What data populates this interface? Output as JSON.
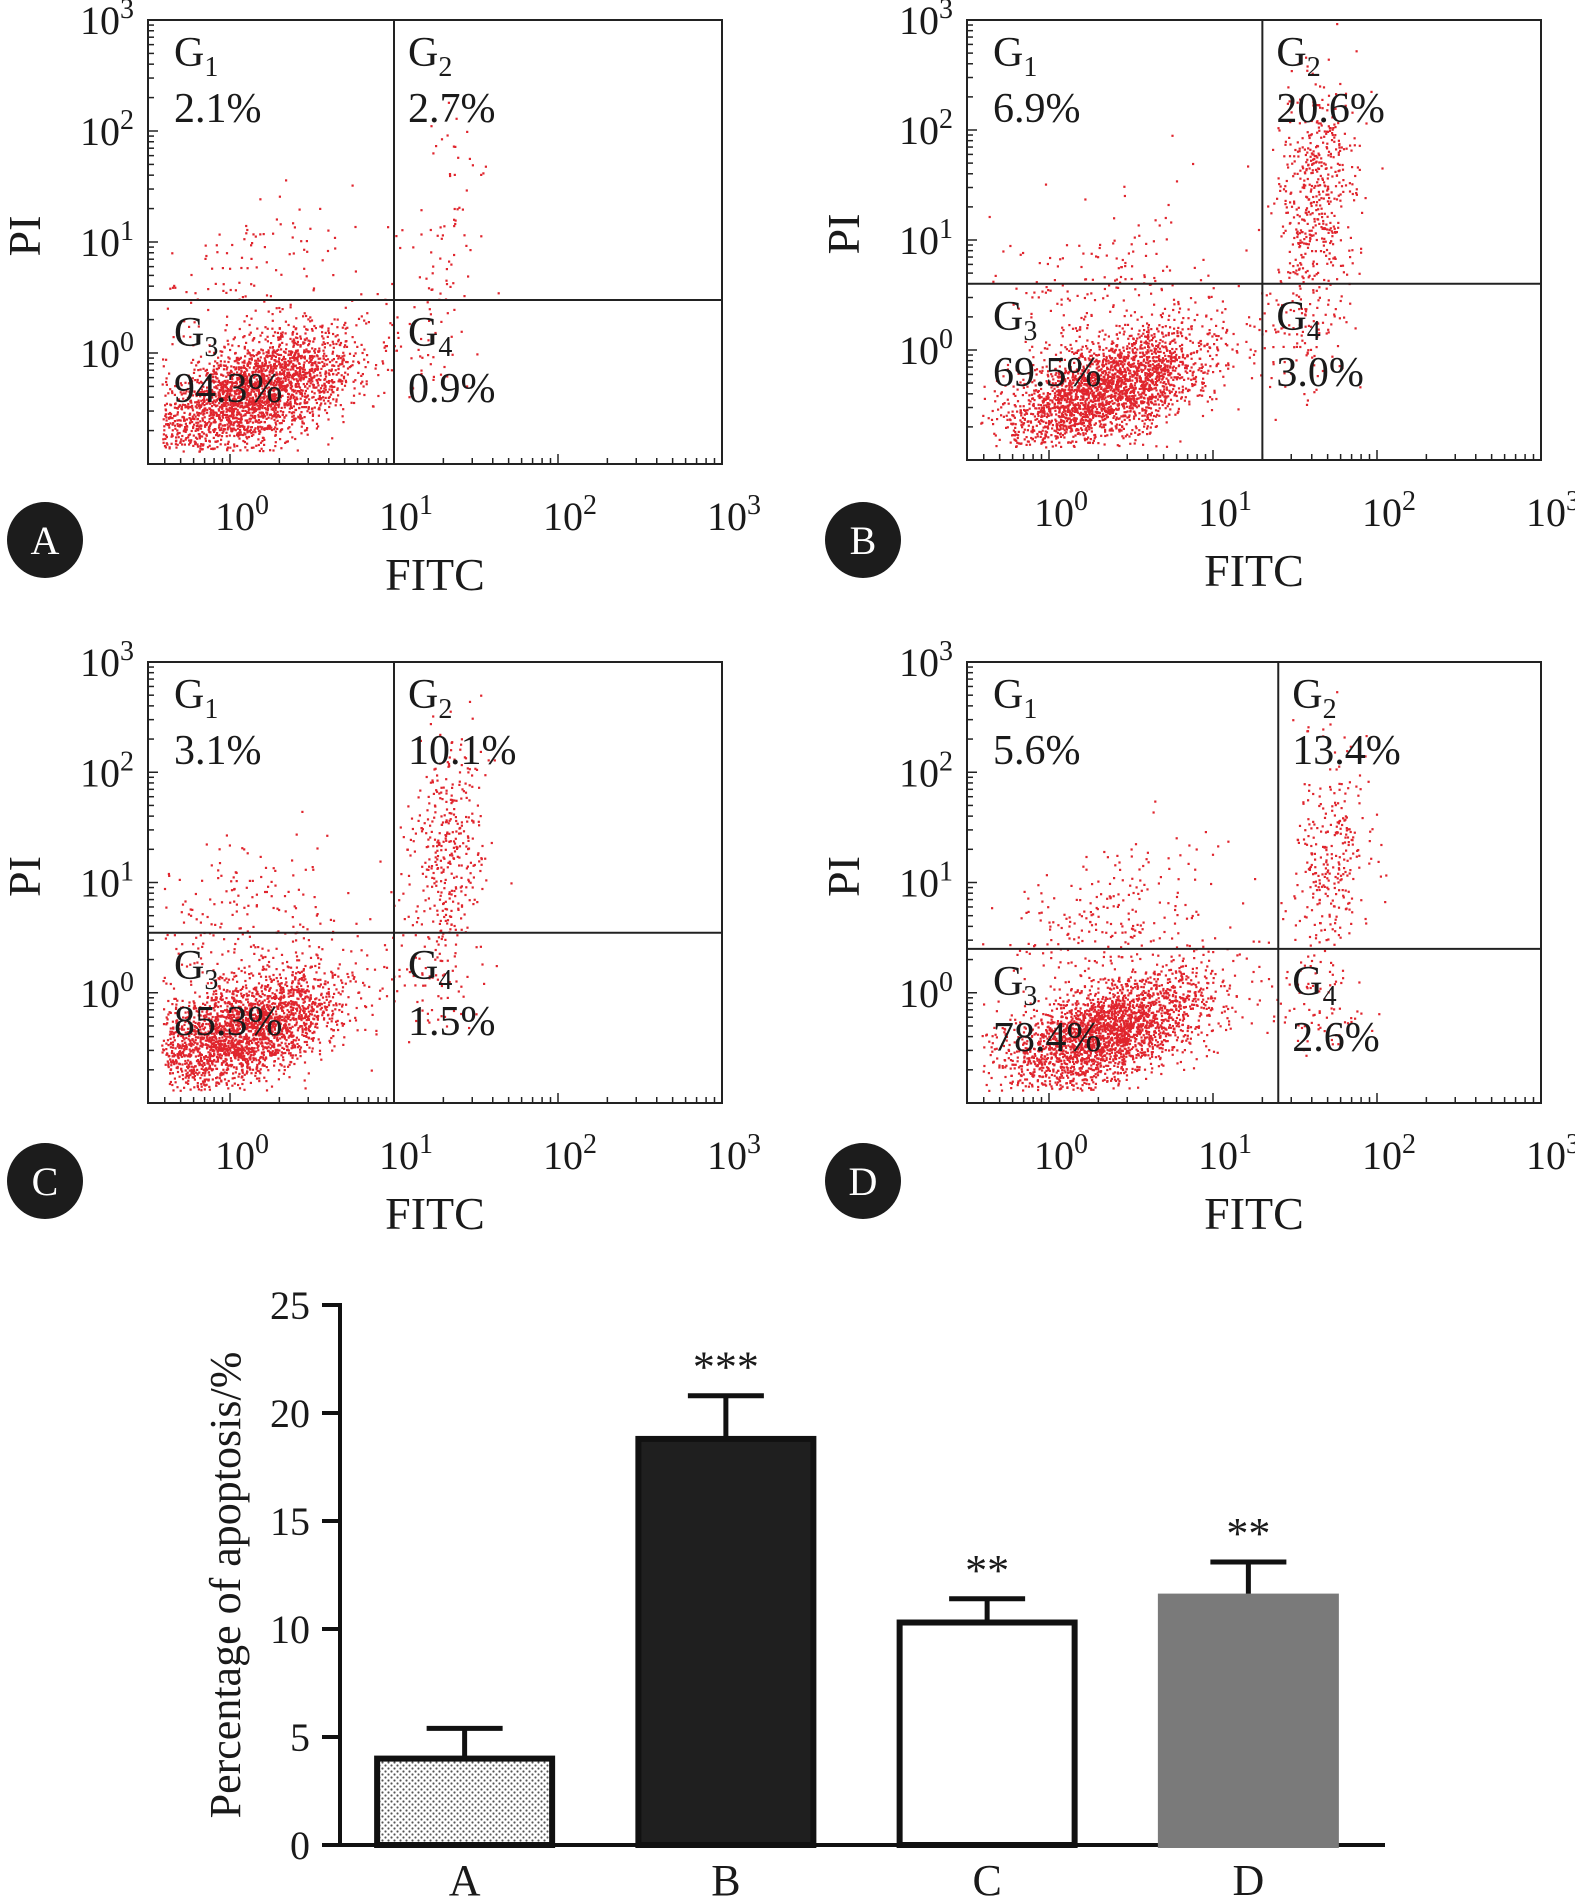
{
  "chart_data": [
    {
      "type": "scatter",
      "panel": "A",
      "xlabel": "FITC",
      "ylabel": "PI",
      "x_scale": "log",
      "y_scale": "log",
      "x_ticks": [
        "10^0",
        "10^1",
        "10^2",
        "10^3"
      ],
      "y_ticks": [
        "10^0",
        "10^1",
        "10^2",
        "10^3"
      ],
      "gate_x": 10,
      "gate_y": 3,
      "quadrants": [
        {
          "name": "G1",
          "percent": "2.1%"
        },
        {
          "name": "G2",
          "percent": "2.7%"
        },
        {
          "name": "G3",
          "percent": "94.3%"
        },
        {
          "name": "G4",
          "percent": "0.9%"
        }
      ],
      "point_color": "#e0252d"
    },
    {
      "type": "scatter",
      "panel": "B",
      "xlabel": "FITC",
      "ylabel": "PI",
      "x_scale": "log",
      "y_scale": "log",
      "x_ticks": [
        "10^0",
        "10^1",
        "10^2",
        "10^3"
      ],
      "y_ticks": [
        "10^0",
        "10^1",
        "10^2",
        "10^3"
      ],
      "gate_x": 20,
      "gate_y": 4,
      "quadrants": [
        {
          "name": "G1",
          "percent": "6.9%"
        },
        {
          "name": "G2",
          "percent": "20.6%"
        },
        {
          "name": "G3",
          "percent": "69.5%"
        },
        {
          "name": "G4",
          "percent": "3.0%"
        }
      ],
      "point_color": "#e0252d"
    },
    {
      "type": "scatter",
      "panel": "C",
      "xlabel": "FITC",
      "ylabel": "PI",
      "x_scale": "log",
      "y_scale": "log",
      "x_ticks": [
        "10^0",
        "10^1",
        "10^2",
        "10^3"
      ],
      "y_ticks": [
        "10^0",
        "10^1",
        "10^2",
        "10^3"
      ],
      "gate_x": 10,
      "gate_y": 3.5,
      "quadrants": [
        {
          "name": "G1",
          "percent": "3.1%"
        },
        {
          "name": "G2",
          "percent": "10.1%"
        },
        {
          "name": "G3",
          "percent": "85.3%"
        },
        {
          "name": "G4",
          "percent": "1.5%"
        }
      ],
      "point_color": "#e0252d"
    },
    {
      "type": "scatter",
      "panel": "D",
      "xlabel": "FITC",
      "ylabel": "PI",
      "x_scale": "log",
      "y_scale": "log",
      "x_ticks": [
        "10^0",
        "10^1",
        "10^2",
        "10^3"
      ],
      "y_ticks": [
        "10^0",
        "10^1",
        "10^2",
        "10^3"
      ],
      "gate_x": 25,
      "gate_y": 2.5,
      "quadrants": [
        {
          "name": "G1",
          "percent": "5.6%"
        },
        {
          "name": "G2",
          "percent": "13.4%"
        },
        {
          "name": "G3",
          "percent": "78.4%"
        },
        {
          "name": "G4",
          "percent": "2.6%"
        }
      ],
      "point_color": "#e0252d"
    },
    {
      "type": "bar",
      "categories": [
        "A",
        "B",
        "C",
        "D"
      ],
      "values": [
        4.0,
        18.8,
        10.3,
        11.5
      ],
      "errors": [
        1.4,
        2.0,
        1.1,
        1.6
      ],
      "significance": [
        "",
        "***",
        "**",
        "**"
      ],
      "ylabel": "Percentage of apoptosis/%",
      "xlabel": "",
      "ylim": [
        0,
        25
      ],
      "yticks": [
        0,
        5,
        10,
        15,
        20,
        25
      ],
      "bar_fills": [
        "dotted",
        "#1f1f1f",
        "#ffffff",
        "#7a7a7a"
      ]
    }
  ]
}
